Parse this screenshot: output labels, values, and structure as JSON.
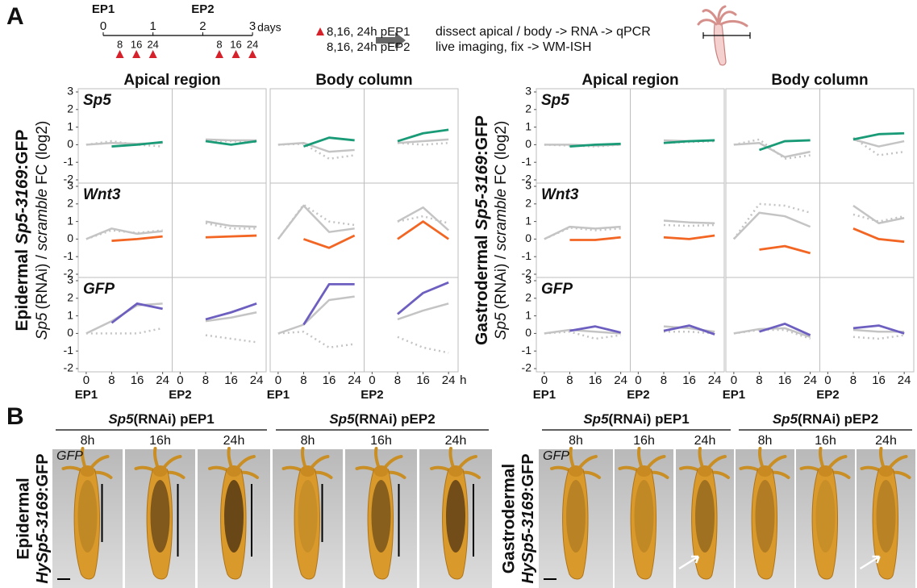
{
  "panel_a": {
    "label": "A",
    "timeline": {
      "events": [
        {
          "label": "EP1",
          "day": 0
        },
        {
          "label": "EP2",
          "day": 2
        }
      ],
      "ticks": [
        0,
        1,
        2,
        3
      ],
      "unit": "days",
      "samples": [
        8,
        16,
        24
      ],
      "sample_color": "#d6202a"
    },
    "legend": [
      "8,16, 24h pEP1",
      "8,16, 24h pEP2"
    ],
    "steps": [
      "dissect apical / body -> RNA -> qPCR",
      "live imaging, fix -> WM-ISH"
    ]
  },
  "chart_data": [
    {
      "type": "line",
      "title_parts": [
        "Epidermal",
        "Sp5-3169",
        ":GFP"
      ],
      "ylabel_parts": [
        "Sp5",
        "(RNAi) /",
        "scramble",
        "FC (log2)"
      ],
      "columns": [
        "Apical region",
        "Body column"
      ],
      "rows": [
        {
          "name": "Sp5",
          "color": "#1a9b77"
        },
        {
          "name": "Wnt3",
          "color": "#f26522"
        },
        {
          "name": "GFP",
          "color": "#6d5fc0"
        }
      ],
      "periods": [
        "EP1",
        "EP2"
      ],
      "x": [
        0,
        8,
        16,
        24
      ],
      "xticks": [
        0,
        8,
        16,
        24
      ],
      "xlim": [
        -2.5,
        27
      ],
      "x_unit": "h",
      "ylim": [
        -2,
        3
      ],
      "yticks": [
        -2,
        -1,
        0,
        1,
        2,
        3
      ],
      "control_color": "#c4c4c4",
      "panels": [
        [
          [
            {
              "values": [
                null,
                -0.1,
                0,
                0.15
              ],
              "gray": [
                0,
                0.1,
                0.05,
                0.1
              ],
              "dotted": [
                0,
                0.2,
                0,
                -0.1
              ]
            },
            {
              "values": [
                null,
                0.2,
                0,
                0.2
              ],
              "gray": [
                null,
                0.3,
                0.25,
                0.25
              ],
              "dotted": [
                null,
                0.2,
                0.2,
                0.15
              ]
            }
          ],
          [
            {
              "values": [
                null,
                -0.1,
                0,
                0.15
              ],
              "gray": [
                0,
                0.6,
                0.3,
                0.45
              ],
              "dotted": [
                0,
                0.5,
                0.35,
                0.5
              ]
            },
            {
              "values": [
                null,
                0.1,
                0.15,
                0.2
              ],
              "gray": [
                null,
                1,
                0.75,
                0.7
              ],
              "dotted": [
                null,
                0.9,
                0.6,
                0.6
              ]
            }
          ],
          [
            {
              "values": [
                null,
                0.6,
                1.7,
                1.4
              ],
              "gray": [
                0,
                0.7,
                1.6,
                1.7
              ],
              "dotted": [
                0,
                0,
                0,
                0.3
              ]
            },
            {
              "values": [
                null,
                0.8,
                1.2,
                1.7
              ],
              "gray": [
                null,
                0.7,
                0.9,
                1.2
              ],
              "dotted": [
                null,
                -0.1,
                -0.3,
                -0.5
              ]
            }
          ]
        ],
        [
          [
            {
              "values": [
                null,
                -0.1,
                0.4,
                0.25
              ],
              "gray": [
                0,
                0.1,
                -0.4,
                -0.3
              ],
              "dotted": [
                0,
                0.05,
                -0.8,
                -0.6
              ]
            },
            {
              "values": [
                null,
                0.2,
                0.65,
                0.85
              ],
              "gray": [
                null,
                0.1,
                0.2,
                0.3
              ],
              "dotted": [
                null,
                0.1,
                0,
                0.1
              ]
            }
          ],
          [
            {
              "values": [
                null,
                0,
                -0.5,
                0.2
              ],
              "gray": [
                0,
                1.9,
                0.4,
                0.6
              ],
              "dotted": [
                0,
                1.95,
                1,
                0.8
              ]
            },
            {
              "values": [
                null,
                0,
                1,
                0
              ],
              "gray": [
                null,
                1,
                1.8,
                0.5
              ],
              "dotted": [
                null,
                1,
                1.3,
                0.9
              ]
            }
          ],
          [
            {
              "values": [
                null,
                0.5,
                2.8,
                2.8
              ],
              "gray": [
                0,
                0.5,
                1.9,
                2.1
              ],
              "dotted": [
                0,
                0.1,
                -0.8,
                -0.6
              ]
            },
            {
              "values": [
                null,
                1.1,
                2.3,
                2.9
              ],
              "gray": [
                null,
                0.8,
                1.3,
                1.7
              ],
              "dotted": [
                null,
                -0.2,
                -0.8,
                -1.1
              ]
            }
          ]
        ]
      ]
    },
    {
      "type": "line",
      "title_parts": [
        "Gastrodermal",
        "Sp5-3169",
        ":GFP"
      ],
      "ylabel_parts": [
        "Sp5",
        "(RNAi) /",
        "scramble",
        "FC (log2)"
      ],
      "columns": [
        "Apical region",
        "Body column"
      ],
      "rows": [
        {
          "name": "Sp5",
          "color": "#1a9b77"
        },
        {
          "name": "Wnt3",
          "color": "#f26522"
        },
        {
          "name": "GFP",
          "color": "#6d5fc0"
        }
      ],
      "periods": [
        "EP1",
        "EP2"
      ],
      "x": [
        0,
        8,
        16,
        24
      ],
      "xticks": [
        0,
        8,
        16,
        24
      ],
      "xlim": [
        -2.5,
        27
      ],
      "ylim": [
        -2,
        3
      ],
      "yticks": [
        -2,
        -1,
        0,
        1,
        2,
        3
      ],
      "control_color": "#c4c4c4",
      "panels": [
        [
          [
            {
              "values": [
                null,
                -0.1,
                0,
                0.05
              ],
              "gray": [
                0,
                0,
                -0.05,
                0
              ],
              "dotted": [
                0,
                -0.05,
                -0.1,
                0
              ]
            },
            {
              "values": [
                null,
                0.1,
                0.2,
                0.25
              ],
              "gray": [
                null,
                0.25,
                0.2,
                0.25
              ],
              "dotted": [
                null,
                0.1,
                0.15,
                0.2
              ]
            }
          ],
          [
            {
              "values": [
                null,
                -0.05,
                -0.05,
                0.1
              ],
              "gray": [
                0,
                0.7,
                0.6,
                0.7
              ],
              "dotted": [
                0,
                0.65,
                0.5,
                0.6
              ]
            },
            {
              "values": [
                null,
                0.1,
                0,
                0.2
              ],
              "gray": [
                null,
                1.05,
                0.95,
                0.9
              ],
              "dotted": [
                null,
                0.8,
                0.75,
                0.8
              ]
            }
          ],
          [
            {
              "values": [
                null,
                0.15,
                0.4,
                0.05
              ],
              "gray": [
                0,
                0.2,
                0.1,
                0
              ],
              "dotted": [
                0,
                0.1,
                -0.3,
                -0.1
              ]
            },
            {
              "values": [
                null,
                0.15,
                0.45,
                -0.05
              ],
              "gray": [
                null,
                0.4,
                0.3,
                0.1
              ],
              "dotted": [
                null,
                0.1,
                0.1,
                0
              ]
            }
          ]
        ],
        [
          [
            {
              "values": [
                null,
                -0.3,
                0.2,
                0.25
              ],
              "gray": [
                0,
                0.1,
                -0.7,
                -0.4
              ],
              "dotted": [
                0,
                0.3,
                -0.8,
                -0.6
              ]
            },
            {
              "values": [
                null,
                0.3,
                0.6,
                0.65
              ],
              "gray": [
                null,
                0.3,
                -0.1,
                0.2
              ],
              "dotted": [
                null,
                0.4,
                -0.6,
                -0.4
              ]
            }
          ],
          [
            {
              "values": [
                null,
                -0.6,
                -0.4,
                -0.8
              ],
              "gray": [
                0,
                1.5,
                1.3,
                0.7
              ],
              "dotted": [
                0,
                2,
                1.9,
                1.5
              ]
            },
            {
              "values": [
                null,
                0.6,
                0,
                -0.15
              ],
              "gray": [
                null,
                1.9,
                0.9,
                1.2
              ],
              "dotted": [
                null,
                1.4,
                1,
                1.3
              ]
            }
          ],
          [
            {
              "values": [
                null,
                0.1,
                0.55,
                -0.1
              ],
              "gray": [
                0,
                0.25,
                0.3,
                -0.2
              ],
              "dotted": [
                0,
                0.2,
                0.2,
                -0.3
              ]
            },
            {
              "values": [
                null,
                0.3,
                0.45,
                0
              ],
              "gray": [
                null,
                0.2,
                0.1,
                0.1
              ],
              "dotted": [
                null,
                -0.2,
                -0.3,
                -0.1
              ]
            }
          ]
        ]
      ]
    }
  ],
  "panel_b": {
    "label": "B",
    "groups": [
      {
        "side": [
          "Epidermal",
          "HySp5-3169",
          ":GFP"
        ],
        "stain": "GFP",
        "conditions": [
          {
            "gene": "Sp5",
            "rest": "(RNAi) pEP1",
            "times": [
              "8h",
              "16h",
              "24h"
            ]
          },
          {
            "gene": "Sp5",
            "rest": "(RNAi) pEP2",
            "times": [
              "8h",
              "16h",
              "24h"
            ]
          }
        ]
      },
      {
        "side": [
          "Gastrodermal",
          "HySp5-3169",
          ":GFP"
        ],
        "stain": "GFP",
        "conditions": [
          {
            "gene": "Sp5",
            "rest": "(RNAi) pEP1",
            "times": [
              "8h",
              "16h",
              "24h"
            ]
          },
          {
            "gene": "Sp5",
            "rest": "(RNAi) pEP2",
            "times": [
              "8h",
              "16h",
              "24h"
            ]
          }
        ]
      }
    ]
  }
}
